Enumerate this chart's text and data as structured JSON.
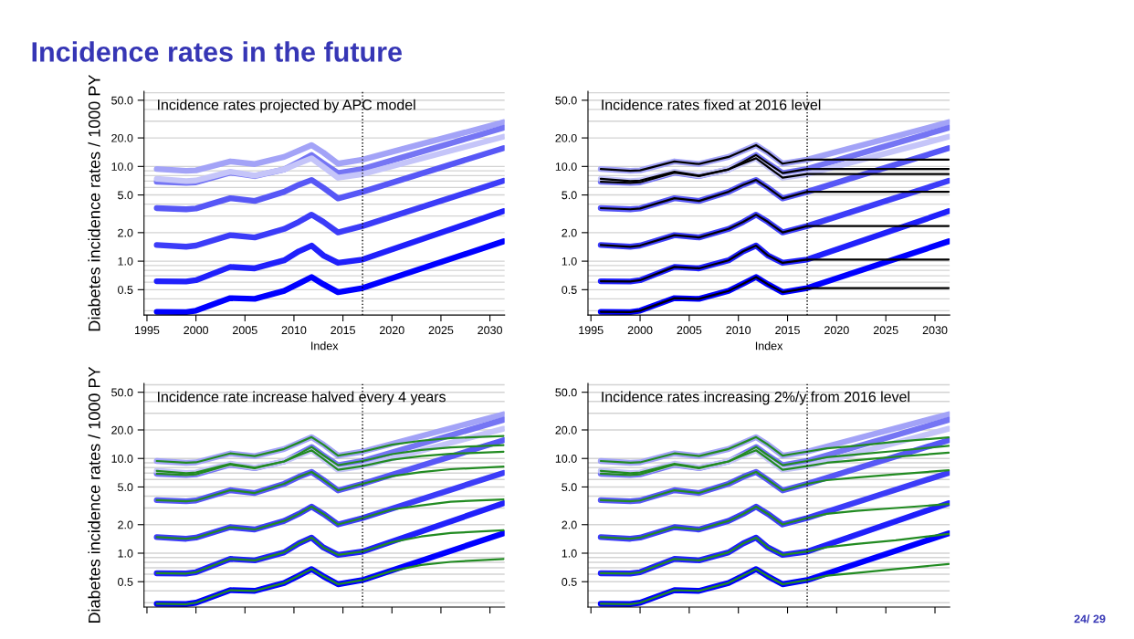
{
  "chart_data": [
    {
      "type": "line",
      "title": "Incidence rates projected by APC model",
      "xlabel": "Index",
      "ylabel": "Diabetes incidence rates / 1000 PY",
      "annotations": [
        "Incidence rates in the future",
        "24/ 29"
      ],
      "log": "y",
      "grid": "y",
      "xlim": [
        1994.7,
        2031.5
      ],
      "ylim": [
        0.27,
        62
      ],
      "xticks": [
        1995,
        2000,
        2005,
        2010,
        2015,
        2020,
        2025,
        2030
      ],
      "yticks": [
        {
          "value": 0.3,
          "label": null
        },
        {
          "value": 0.4,
          "label": null
        },
        {
          "value": 0.5,
          "label": "0.5"
        },
        {
          "value": 0.6,
          "label": null
        },
        {
          "value": 0.7,
          "label": null
        },
        {
          "value": 0.8,
          "label": null
        },
        {
          "value": 0.9,
          "label": null
        },
        {
          "value": 1,
          "label": "1.0"
        },
        {
          "value": 2,
          "label": "2.0"
        },
        {
          "value": 3,
          "label": null
        },
        {
          "value": 4,
          "label": null
        },
        {
          "value": 5,
          "label": "5.0"
        },
        {
          "value": 6,
          "label": null
        },
        {
          "value": 7,
          "label": null
        },
        {
          "value": 8,
          "label": null
        },
        {
          "value": 9,
          "label": null
        },
        {
          "value": 10,
          "label": "10.0"
        },
        {
          "value": 20,
          "label": "20.0"
        },
        {
          "value": 30,
          "label": null
        },
        {
          "value": 40,
          "label": null
        },
        {
          "value": 50,
          "label": "50.0"
        },
        {
          "value": 60,
          "label": null
        }
      ],
      "ref_lines": [
        {
          "axis": "x",
          "value": 2017,
          "color": "#000000",
          "line_style": "dotted"
        }
      ],
      "x": [
        1996,
        1999,
        2000,
        2003.5,
        2006,
        2009,
        2010.5,
        2011.8,
        2013,
        2014.5,
        2017,
        2031.4
      ],
      "series": [
        {
          "color": "#a3a3f7",
          "values": [
            9.4,
            9.0,
            9.1,
            11.3,
            10.6,
            12.6,
            14.7,
            16.8,
            14.0,
            10.7,
            11.8,
            29.3
          ]
        },
        {
          "color": "#7575f4",
          "values": [
            6.9,
            6.7,
            6.8,
            8.6,
            7.9,
            9.3,
            11.2,
            13.2,
            10.8,
            8.5,
            9.4,
            25.6
          ]
        },
        {
          "color": "#c5c5f9",
          "values": [
            7.4,
            7.0,
            7.1,
            8.8,
            8.0,
            9.3,
            10.8,
            12.2,
            9.9,
            7.6,
            8.3,
            20.6
          ]
        },
        {
          "color": "#5757f6",
          "values": [
            3.63,
            3.53,
            3.6,
            4.62,
            4.32,
            5.4,
            6.4,
            7.2,
            5.96,
            4.6,
            5.4,
            15.6
          ]
        },
        {
          "color": "#3c3cf8",
          "values": [
            1.48,
            1.42,
            1.46,
            1.88,
            1.78,
            2.19,
            2.6,
            3.1,
            2.6,
            2.01,
            2.35,
            7.05
          ]
        },
        {
          "color": "#2020fb",
          "values": [
            0.614,
            0.61,
            0.63,
            0.87,
            0.84,
            1.02,
            1.27,
            1.46,
            1.15,
            0.96,
            1.04,
            3.37
          ]
        },
        {
          "color": "#0000ff",
          "values": [
            0.292,
            0.29,
            0.3,
            0.407,
            0.4,
            0.485,
            0.58,
            0.68,
            0.57,
            0.47,
            0.52,
            1.62
          ]
        }
      ]
    },
    {
      "type": "line",
      "title": "Incidence rates fixed at 2016 level",
      "xlabel": "Index",
      "log": "y",
      "grid": "y",
      "xlim": [
        1994.7,
        2031.5
      ],
      "ylim": [
        0.27,
        62
      ],
      "xticks": [
        1995,
        2000,
        2005,
        2010,
        2015,
        2020,
        2025,
        2030
      ],
      "yticks": [
        {
          "value": 0.3,
          "label": null
        },
        {
          "value": 0.4,
          "label": null
        },
        {
          "value": 0.5,
          "label": "0.5"
        },
        {
          "value": 0.6,
          "label": null
        },
        {
          "value": 0.7,
          "label": null
        },
        {
          "value": 0.8,
          "label": null
        },
        {
          "value": 0.9,
          "label": null
        },
        {
          "value": 1,
          "label": "1.0"
        },
        {
          "value": 2,
          "label": "2.0"
        },
        {
          "value": 3,
          "label": null
        },
        {
          "value": 4,
          "label": null
        },
        {
          "value": 5,
          "label": "5.0"
        },
        {
          "value": 6,
          "label": null
        },
        {
          "value": 7,
          "label": null
        },
        {
          "value": 8,
          "label": null
        },
        {
          "value": 9,
          "label": null
        },
        {
          "value": 10,
          "label": "10.0"
        },
        {
          "value": 20,
          "label": "20.0"
        },
        {
          "value": 30,
          "label": null
        },
        {
          "value": 40,
          "label": null
        },
        {
          "value": 50,
          "label": "50.0"
        },
        {
          "value": 60,
          "label": null
        }
      ],
      "ref_lines": [
        {
          "axis": "x",
          "value": 2017,
          "color": "#000000",
          "line_style": "dotted"
        }
      ],
      "x": [
        1996,
        1999,
        2000,
        2003.5,
        2006,
        2009,
        2010.5,
        2011.8,
        2013,
        2014.5,
        2017,
        2031.4
      ],
      "series": [
        {
          "color": "#a3a3f7",
          "values": [
            9.4,
            9.0,
            9.1,
            11.3,
            10.6,
            12.6,
            14.7,
            16.8,
            14.0,
            10.7,
            11.8,
            29.3
          ]
        },
        {
          "color": "#7575f4",
          "values": [
            6.9,
            6.7,
            6.8,
            8.6,
            7.9,
            9.3,
            11.2,
            13.2,
            10.8,
            8.5,
            9.4,
            25.6
          ]
        },
        {
          "color": "#c5c5f9",
          "values": [
            7.4,
            7.0,
            7.1,
            8.8,
            8.0,
            9.3,
            10.8,
            12.2,
            9.9,
            7.6,
            8.3,
            20.6
          ]
        },
        {
          "color": "#5757f6",
          "values": [
            3.63,
            3.53,
            3.6,
            4.62,
            4.32,
            5.4,
            6.4,
            7.2,
            5.96,
            4.6,
            5.4,
            15.6
          ]
        },
        {
          "color": "#3c3cf8",
          "values": [
            1.48,
            1.42,
            1.46,
            1.88,
            1.78,
            2.19,
            2.6,
            3.1,
            2.6,
            2.01,
            2.35,
            7.05
          ]
        },
        {
          "color": "#2020fb",
          "values": [
            0.614,
            0.61,
            0.63,
            0.87,
            0.84,
            1.02,
            1.27,
            1.46,
            1.15,
            0.96,
            1.04,
            3.37
          ]
        },
        {
          "color": "#0000ff",
          "values": [
            0.292,
            0.29,
            0.3,
            0.407,
            0.4,
            0.485,
            0.58,
            0.68,
            0.57,
            0.47,
            0.52,
            1.62
          ]
        },
        {
          "color": "#000000",
          "x": [
            1996,
            1999,
            2000,
            2003.5,
            2006,
            2009,
            2010.5,
            2011.8,
            2013,
            2014.5,
            2017,
            2031.4
          ],
          "values": [
            9.4,
            9.0,
            9.1,
            11.3,
            10.6,
            12.6,
            14.7,
            16.8,
            14.0,
            10.7,
            11.8,
            11.8
          ]
        },
        {
          "color": "#000000",
          "x": [
            1996,
            1999,
            2000,
            2003.5,
            2006,
            2009,
            2010.5,
            2011.8,
            2013,
            2014.5,
            2017,
            2031.4
          ],
          "values": [
            6.9,
            6.7,
            6.8,
            8.6,
            7.9,
            9.3,
            11.2,
            13.2,
            10.8,
            8.5,
            9.4,
            9.4
          ]
        },
        {
          "color": "#000000",
          "x": [
            1996,
            1999,
            2000,
            2003.5,
            2006,
            2009,
            2010.5,
            2011.8,
            2013,
            2014.5,
            2017,
            2031.4
          ],
          "values": [
            7.4,
            7.0,
            7.1,
            8.8,
            8.0,
            9.3,
            10.8,
            12.2,
            9.9,
            7.6,
            8.3,
            8.3
          ]
        },
        {
          "color": "#000000",
          "x": [
            1996,
            1999,
            2000,
            2003.5,
            2006,
            2009,
            2010.5,
            2011.8,
            2013,
            2014.5,
            2017,
            2031.4
          ],
          "values": [
            3.63,
            3.53,
            3.6,
            4.62,
            4.32,
            5.4,
            6.4,
            7.2,
            5.96,
            4.6,
            5.4,
            5.4
          ]
        },
        {
          "color": "#000000",
          "x": [
            1996,
            1999,
            2000,
            2003.5,
            2006,
            2009,
            2010.5,
            2011.8,
            2013,
            2014.5,
            2017,
            2031.4
          ],
          "values": [
            1.48,
            1.42,
            1.46,
            1.88,
            1.78,
            2.19,
            2.6,
            3.1,
            2.6,
            2.01,
            2.35,
            2.35
          ]
        },
        {
          "color": "#000000",
          "x": [
            1996,
            1999,
            2000,
            2003.5,
            2006,
            2009,
            2010.5,
            2011.8,
            2013,
            2014.5,
            2017,
            2031.4
          ],
          "values": [
            0.614,
            0.61,
            0.63,
            0.87,
            0.84,
            1.02,
            1.27,
            1.46,
            1.15,
            0.96,
            1.04,
            1.04
          ]
        },
        {
          "color": "#000000",
          "x": [
            1996,
            1999,
            2000,
            2003.5,
            2006,
            2009,
            2010.5,
            2011.8,
            2013,
            2014.5,
            2017,
            2031.4
          ],
          "values": [
            0.292,
            0.29,
            0.3,
            0.407,
            0.4,
            0.485,
            0.58,
            0.68,
            0.57,
            0.47,
            0.52,
            0.52
          ]
        }
      ]
    },
    {
      "type": "line",
      "title": "Incidence rate increase halved every 4 years",
      "ylabel": "Diabetes incidence rates / 1000 PY",
      "tick_labels": "y",
      "log": "y",
      "grid": "y",
      "xlim": [
        1994.7,
        2031.5
      ],
      "ylim": [
        0.27,
        62
      ],
      "xticks": [
        1995,
        2000,
        2005,
        2010,
        2015,
        2020,
        2025,
        2030
      ],
      "yticks": [
        {
          "value": 0.3,
          "label": null
        },
        {
          "value": 0.4,
          "label": null
        },
        {
          "value": 0.5,
          "label": "0.5"
        },
        {
          "value": 0.6,
          "label": null
        },
        {
          "value": 0.7,
          "label": null
        },
        {
          "value": 0.8,
          "label": null
        },
        {
          "value": 0.9,
          "label": null
        },
        {
          "value": 1,
          "label": "1.0"
        },
        {
          "value": 2,
          "label": "2.0"
        },
        {
          "value": 3,
          "label": null
        },
        {
          "value": 4,
          "label": null
        },
        {
          "value": 5,
          "label": "5.0"
        },
        {
          "value": 6,
          "label": null
        },
        {
          "value": 7,
          "label": null
        },
        {
          "value": 8,
          "label": null
        },
        {
          "value": 9,
          "label": null
        },
        {
          "value": 10,
          "label": "10.0"
        },
        {
          "value": 20,
          "label": "20.0"
        },
        {
          "value": 30,
          "label": null
        },
        {
          "value": 40,
          "label": null
        },
        {
          "value": 50,
          "label": "50.0"
        },
        {
          "value": 60,
          "label": null
        }
      ],
      "ref_lines": [
        {
          "axis": "x",
          "value": 2017,
          "color": "#000000",
          "line_style": "dotted"
        }
      ],
      "x": [
        1996,
        1999,
        2000,
        2003.5,
        2006,
        2009,
        2010.5,
        2011.8,
        2013,
        2014.5,
        2017,
        2031.4
      ],
      "series": [
        {
          "color": "#a3a3f7",
          "values": [
            9.4,
            9.0,
            9.1,
            11.3,
            10.6,
            12.6,
            14.7,
            16.8,
            14.0,
            10.7,
            11.8,
            29.3
          ]
        },
        {
          "color": "#7575f4",
          "values": [
            6.9,
            6.7,
            6.8,
            8.6,
            7.9,
            9.3,
            11.2,
            13.2,
            10.8,
            8.5,
            9.4,
            25.6
          ]
        },
        {
          "color": "#c5c5f9",
          "values": [
            7.4,
            7.0,
            7.1,
            8.8,
            8.0,
            9.3,
            10.8,
            12.2,
            9.9,
            7.6,
            8.3,
            20.6
          ]
        },
        {
          "color": "#5757f6",
          "values": [
            3.63,
            3.53,
            3.6,
            4.62,
            4.32,
            5.4,
            6.4,
            7.2,
            5.96,
            4.6,
            5.4,
            15.6
          ]
        },
        {
          "color": "#3c3cf8",
          "values": [
            1.48,
            1.42,
            1.46,
            1.88,
            1.78,
            2.19,
            2.6,
            3.1,
            2.6,
            2.01,
            2.35,
            7.05
          ]
        },
        {
          "color": "#2020fb",
          "values": [
            0.614,
            0.61,
            0.63,
            0.87,
            0.84,
            1.02,
            1.27,
            1.46,
            1.15,
            0.96,
            1.04,
            3.37
          ]
        },
        {
          "color": "#0000ff",
          "values": [
            0.292,
            0.29,
            0.3,
            0.407,
            0.4,
            0.485,
            0.58,
            0.68,
            0.57,
            0.47,
            0.52,
            1.62
          ]
        },
        {
          "color": "#228b22",
          "x": [
            1996,
            1999,
            2000,
            2003.5,
            2006,
            2009,
            2010.5,
            2011.8,
            2013,
            2014.5,
            2017,
            2020,
            2023,
            2026,
            2031.4
          ],
          "values": [
            9.4,
            9.0,
            9.1,
            11.3,
            10.6,
            12.6,
            14.7,
            16.8,
            14.0,
            10.7,
            11.8,
            14.0,
            15.4,
            16.4,
            17.3
          ]
        },
        {
          "color": "#228b22",
          "x": [
            1996,
            1999,
            2000,
            2003.5,
            2006,
            2009,
            2010.5,
            2011.8,
            2013,
            2014.5,
            2017,
            2020,
            2023,
            2026,
            2031.4
          ],
          "values": [
            6.9,
            6.7,
            6.8,
            8.6,
            7.9,
            9.3,
            11.2,
            13.2,
            10.8,
            8.5,
            9.4,
            11.1,
            12.3,
            13.1,
            13.8
          ]
        },
        {
          "color": "#228b22",
          "x": [
            1996,
            1999,
            2000,
            2003.5,
            2006,
            2009,
            2010.5,
            2011.8,
            2013,
            2014.5,
            2017,
            2020,
            2023,
            2026,
            2031.4
          ],
          "values": [
            7.4,
            7.0,
            7.1,
            8.8,
            8.0,
            9.3,
            10.8,
            12.2,
            9.9,
            7.6,
            8.3,
            9.7,
            10.6,
            11.2,
            11.8
          ]
        },
        {
          "color": "#228b22",
          "x": [
            1996,
            1999,
            2000,
            2003.5,
            2006,
            2009,
            2010.5,
            2011.8,
            2013,
            2014.5,
            2017,
            2020,
            2023,
            2026,
            2031.4
          ],
          "values": [
            3.63,
            3.53,
            3.6,
            4.62,
            4.32,
            5.4,
            6.4,
            7.2,
            5.96,
            4.6,
            5.4,
            6.5,
            7.2,
            7.7,
            8.2
          ]
        },
        {
          "color": "#228b22",
          "x": [
            1996,
            1999,
            2000,
            2003.5,
            2006,
            2009,
            2010.5,
            2011.8,
            2013,
            2014.5,
            2017,
            2020,
            2023,
            2026,
            2031.4
          ],
          "values": [
            1.48,
            1.42,
            1.46,
            1.88,
            1.78,
            2.19,
            2.6,
            3.1,
            2.6,
            2.01,
            2.35,
            2.9,
            3.2,
            3.5,
            3.7
          ]
        },
        {
          "color": "#228b22",
          "x": [
            1996,
            1999,
            2000,
            2003.5,
            2006,
            2009,
            2010.5,
            2011.8,
            2013,
            2014.5,
            2017,
            2020,
            2023,
            2026,
            2031.4
          ],
          "values": [
            0.614,
            0.61,
            0.63,
            0.87,
            0.84,
            1.02,
            1.27,
            1.46,
            1.15,
            0.96,
            1.04,
            1.31,
            1.5,
            1.63,
            1.75
          ]
        },
        {
          "color": "#228b22",
          "x": [
            1996,
            1999,
            2000,
            2003.5,
            2006,
            2009,
            2010.5,
            2011.8,
            2013,
            2014.5,
            2017,
            2020,
            2023,
            2026,
            2031.4
          ],
          "values": [
            0.292,
            0.29,
            0.3,
            0.407,
            0.4,
            0.485,
            0.58,
            0.68,
            0.57,
            0.47,
            0.52,
            0.65,
            0.75,
            0.81,
            0.87
          ]
        }
      ]
    },
    {
      "type": "line",
      "title": "Incidence rates increasing 2%/y from 2016 level",
      "tick_labels": "y",
      "log": "y",
      "grid": "y",
      "xlim": [
        1994.7,
        2031.5
      ],
      "ylim": [
        0.27,
        62
      ],
      "xticks": [
        1995,
        2000,
        2005,
        2010,
        2015,
        2020,
        2025,
        2030
      ],
      "yticks": [
        {
          "value": 0.3,
          "label": null
        },
        {
          "value": 0.4,
          "label": null
        },
        {
          "value": 0.5,
          "label": "0.5"
        },
        {
          "value": 0.6,
          "label": null
        },
        {
          "value": 0.7,
          "label": null
        },
        {
          "value": 0.8,
          "label": null
        },
        {
          "value": 0.9,
          "label": null
        },
        {
          "value": 1,
          "label": "1.0"
        },
        {
          "value": 2,
          "label": "2.0"
        },
        {
          "value": 3,
          "label": null
        },
        {
          "value": 4,
          "label": null
        },
        {
          "value": 5,
          "label": "5.0"
        },
        {
          "value": 6,
          "label": null
        },
        {
          "value": 7,
          "label": null
        },
        {
          "value": 8,
          "label": null
        },
        {
          "value": 9,
          "label": null
        },
        {
          "value": 10,
          "label": "10.0"
        },
        {
          "value": 20,
          "label": "20.0"
        },
        {
          "value": 30,
          "label": null
        },
        {
          "value": 40,
          "label": null
        },
        {
          "value": 50,
          "label": "50.0"
        },
        {
          "value": 60,
          "label": null
        }
      ],
      "ref_lines": [
        {
          "axis": "x",
          "value": 2017,
          "color": "#000000",
          "line_style": "dotted"
        }
      ],
      "x": [
        1996,
        1999,
        2000,
        2003.5,
        2006,
        2009,
        2010.5,
        2011.8,
        2013,
        2014.5,
        2017,
        2031.4
      ],
      "series": [
        {
          "color": "#a3a3f7",
          "values": [
            9.4,
            9.0,
            9.1,
            11.3,
            10.6,
            12.6,
            14.7,
            16.8,
            14.0,
            10.7,
            11.8,
            29.3
          ]
        },
        {
          "color": "#7575f4",
          "values": [
            6.9,
            6.7,
            6.8,
            8.6,
            7.9,
            9.3,
            11.2,
            13.2,
            10.8,
            8.5,
            9.4,
            25.6
          ]
        },
        {
          "color": "#c5c5f9",
          "values": [
            7.4,
            7.0,
            7.1,
            8.8,
            8.0,
            9.3,
            10.8,
            12.2,
            9.9,
            7.6,
            8.3,
            20.6
          ]
        },
        {
          "color": "#5757f6",
          "values": [
            3.63,
            3.53,
            3.6,
            4.62,
            4.32,
            5.4,
            6.4,
            7.2,
            5.96,
            4.6,
            5.4,
            15.6
          ]
        },
        {
          "color": "#3c3cf8",
          "values": [
            1.48,
            1.42,
            1.46,
            1.88,
            1.78,
            2.19,
            2.6,
            3.1,
            2.6,
            2.01,
            2.35,
            7.05
          ]
        },
        {
          "color": "#2020fb",
          "values": [
            0.614,
            0.61,
            0.63,
            0.87,
            0.84,
            1.02,
            1.27,
            1.46,
            1.15,
            0.96,
            1.04,
            3.37
          ]
        },
        {
          "color": "#0000ff",
          "values": [
            0.292,
            0.29,
            0.3,
            0.407,
            0.4,
            0.485,
            0.58,
            0.68,
            0.57,
            0.47,
            0.52,
            1.62
          ]
        },
        {
          "color": "#228b22",
          "x": [
            1996,
            1999,
            2000,
            2003.5,
            2006,
            2009,
            2010.5,
            2011.8,
            2013,
            2014.5,
            2017,
            2019,
            2022,
            2026,
            2031.4
          ],
          "values": [
            9.4,
            9.0,
            9.1,
            11.3,
            10.6,
            12.6,
            14.7,
            16.8,
            14.0,
            10.7,
            11.8,
            12.8,
            13.6,
            15.0,
            16.7
          ]
        },
        {
          "color": "#228b22",
          "x": [
            1996,
            1999,
            2000,
            2003.5,
            2006,
            2009,
            2010.5,
            2011.8,
            2013,
            2014.5,
            2017,
            2019,
            2022,
            2026,
            2031.4
          ],
          "values": [
            6.9,
            6.7,
            6.8,
            8.6,
            7.9,
            9.3,
            11.2,
            13.2,
            10.8,
            8.5,
            9.4,
            10.3,
            11.0,
            12.0,
            13.6
          ]
        },
        {
          "color": "#228b22",
          "x": [
            1996,
            1999,
            2000,
            2003.5,
            2006,
            2009,
            2010.5,
            2011.8,
            2013,
            2014.5,
            2017,
            2019,
            2022,
            2026,
            2031.4
          ],
          "values": [
            7.4,
            7.0,
            7.1,
            8.8,
            8.0,
            9.3,
            10.8,
            12.2,
            9.9,
            7.6,
            8.3,
            9.0,
            9.6,
            10.4,
            11.5
          ]
        },
        {
          "color": "#228b22",
          "x": [
            1996,
            1999,
            2000,
            2003.5,
            2006,
            2009,
            2010.5,
            2011.8,
            2013,
            2014.5,
            2017,
            2019,
            2022,
            2026,
            2031.4
          ],
          "values": [
            3.63,
            3.53,
            3.6,
            4.62,
            4.32,
            5.4,
            6.4,
            7.2,
            5.96,
            4.6,
            5.4,
            5.9,
            6.3,
            6.8,
            7.5
          ]
        },
        {
          "color": "#228b22",
          "x": [
            1996,
            1999,
            2000,
            2003.5,
            2006,
            2009,
            2010.5,
            2011.8,
            2013,
            2014.5,
            2017,
            2019,
            2022,
            2026,
            2031.4
          ],
          "values": [
            1.48,
            1.42,
            1.46,
            1.88,
            1.78,
            2.19,
            2.6,
            3.1,
            2.6,
            2.01,
            2.35,
            2.6,
            2.8,
            3.0,
            3.3
          ]
        },
        {
          "color": "#228b22",
          "x": [
            1996,
            1999,
            2000,
            2003.5,
            2006,
            2009,
            2010.5,
            2011.8,
            2013,
            2014.5,
            2017,
            2019,
            2022,
            2026,
            2031.4
          ],
          "values": [
            0.614,
            0.61,
            0.63,
            0.87,
            0.84,
            1.02,
            1.27,
            1.46,
            1.15,
            0.96,
            1.04,
            1.16,
            1.25,
            1.37,
            1.6
          ]
        },
        {
          "color": "#228b22",
          "x": [
            1996,
            1999,
            2000,
            2003.5,
            2006,
            2009,
            2010.5,
            2011.8,
            2013,
            2014.5,
            2017,
            2019,
            2022,
            2026,
            2031.4
          ],
          "values": [
            0.292,
            0.29,
            0.3,
            0.407,
            0.4,
            0.485,
            0.58,
            0.68,
            0.57,
            0.47,
            0.52,
            0.58,
            0.62,
            0.68,
            0.77
          ]
        }
      ]
    }
  ]
}
